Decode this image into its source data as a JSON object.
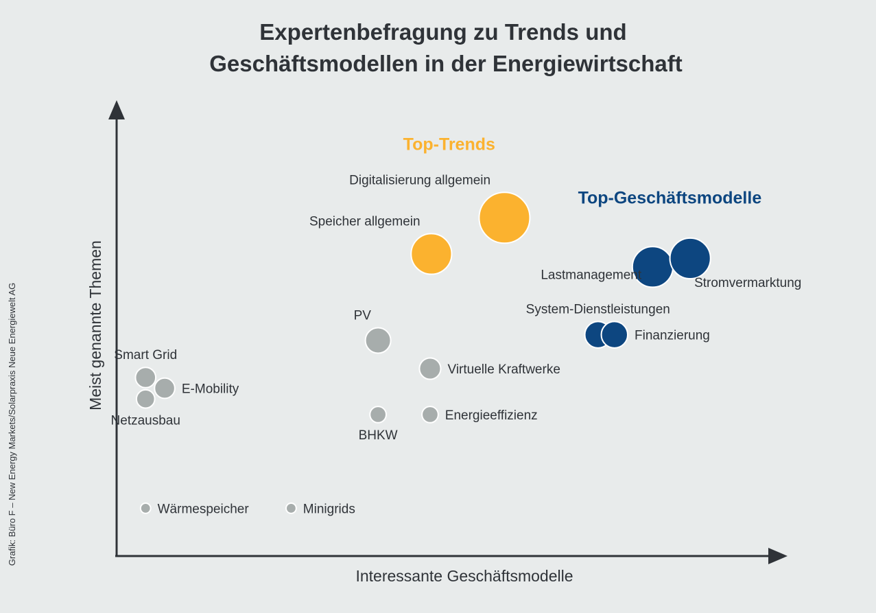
{
  "title": [
    "Expertenbefragung zu Trends und",
    "Geschäftsmodellen in der Energiewirtschaft"
  ],
  "credit": "Grafik: Büro F – New Energy Markets/Solarpraxis Neue Energiewelt AG",
  "colors": {
    "background": "#e8ebeb",
    "trend": "#fbb22f",
    "business": "#0d4680",
    "other": "#a7adac",
    "text": "#2f3338"
  },
  "chart_data": {
    "type": "scatter",
    "xlabel": "Interessante Geschäftsmodelle",
    "ylabel": "Meist genannte Themen",
    "xlim": [
      0,
      100
    ],
    "ylim": [
      0,
      100
    ],
    "grid": false,
    "group_labels": [
      {
        "text": "Top-Trends",
        "category": "trend",
        "x": 50.5,
        "y": 91
      },
      {
        "text": "Top-Geschäftsmodelle",
        "category": "business",
        "x": 84,
        "y": 79
      }
    ],
    "points": [
      {
        "label": "Digitalisierung allgemein",
        "x": 58.9,
        "y": 75.8,
        "size": 5,
        "category": "trend",
        "label_pos": "upper-left"
      },
      {
        "label": "Speicher allgemein",
        "x": 47.8,
        "y": 67.7,
        "size": 4,
        "category": "trend",
        "label_pos": "upper-left"
      },
      {
        "label": "Lastmanagement",
        "x": 81.4,
        "y": 64.8,
        "size": 4,
        "category": "business",
        "label_pos": "lower-left"
      },
      {
        "label": "Stromvermarktung",
        "x": 87.1,
        "y": 66.7,
        "size": 4,
        "category": "business",
        "label_pos": "lower-right"
      },
      {
        "label": "System-Dienstleistungen",
        "x": 73.1,
        "y": 49.6,
        "size": 2.6,
        "category": "business",
        "label_pos": "above"
      },
      {
        "label": "Finanzierung",
        "x": 75.6,
        "y": 49.6,
        "size": 2.6,
        "category": "business",
        "label_pos": "right"
      },
      {
        "label": "PV",
        "x": 39.7,
        "y": 48.3,
        "size": 2.5,
        "category": "other",
        "label_pos": "upper-left"
      },
      {
        "label": "Virtuelle Kraftwerke",
        "x": 47.6,
        "y": 42.0,
        "size": 2.1,
        "category": "other",
        "label_pos": "right"
      },
      {
        "label": "Smart Grid",
        "x": 4.4,
        "y": 40.0,
        "size": 2.0,
        "category": "other",
        "label_pos": "above"
      },
      {
        "label": "E-Mobility",
        "x": 7.3,
        "y": 37.6,
        "size": 2.0,
        "category": "other",
        "label_pos": "right"
      },
      {
        "label": "Netzausbau",
        "x": 4.4,
        "y": 35.2,
        "size": 1.8,
        "category": "other",
        "label_pos": "below"
      },
      {
        "label": "BHKW",
        "x": 39.7,
        "y": 31.7,
        "size": 1.6,
        "category": "other",
        "label_pos": "below"
      },
      {
        "label": "Energieeffizienz",
        "x": 47.6,
        "y": 31.7,
        "size": 1.6,
        "category": "other",
        "label_pos": "right"
      },
      {
        "label": "Wärmespeicher",
        "x": 4.4,
        "y": 10.7,
        "size": 1.0,
        "category": "other",
        "label_pos": "right"
      },
      {
        "label": "Minigrids",
        "x": 26.5,
        "y": 10.7,
        "size": 1.0,
        "category": "other",
        "label_pos": "right"
      }
    ]
  }
}
